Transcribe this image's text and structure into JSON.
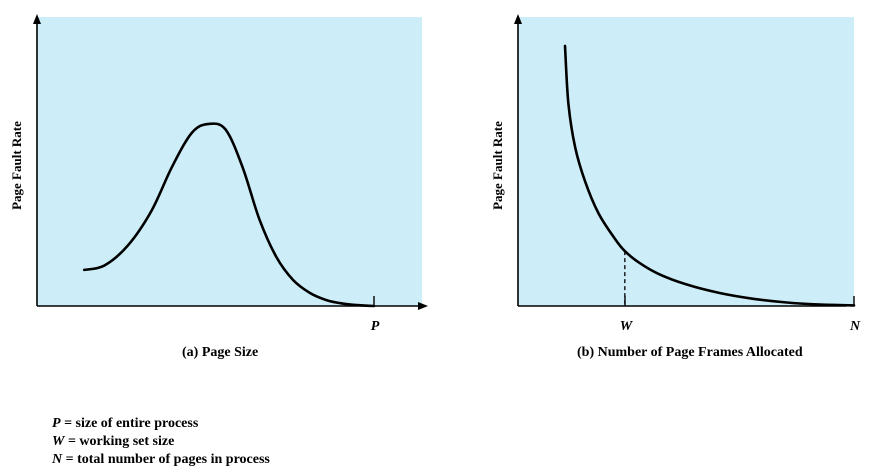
{
  "chart_data": [
    {
      "type": "line",
      "caption": "(a) Page Size",
      "ylabel": "Page Fault Rate",
      "xticks": [
        "P"
      ],
      "colors": {
        "plot_bg": "#cdeef8",
        "curve": "#000000",
        "axis": "#000000"
      },
      "series": [
        {
          "x": [
            0.14,
            0.2,
            0.27,
            0.34,
            0.4,
            0.46,
            0.51,
            0.56,
            0.61,
            0.66,
            0.71,
            0.76,
            0.81,
            0.86,
            0.91,
            0.95,
            1.0
          ],
          "y": [
            0.125,
            0.14,
            0.21,
            0.33,
            0.48,
            0.6,
            0.63,
            0.61,
            0.48,
            0.3,
            0.17,
            0.09,
            0.045,
            0.02,
            0.008,
            0.003,
            0.0
          ]
        }
      ]
    },
    {
      "type": "line",
      "caption": "(b) Number of Page Frames Allocated",
      "ylabel": "Page Fault Rate",
      "xticks": [
        "W",
        "N"
      ],
      "marker_x": 0.318,
      "colors": {
        "plot_bg": "#cdeef8",
        "curve": "#000000",
        "axis": "#000000"
      },
      "series": [
        {
          "x": [
            0.14,
            0.15,
            0.17,
            0.2,
            0.24,
            0.29,
            0.318,
            0.36,
            0.42,
            0.5,
            0.6,
            0.7,
            0.8,
            0.9,
            1.0
          ],
          "y": [
            0.9,
            0.7,
            0.55,
            0.43,
            0.32,
            0.23,
            0.19,
            0.15,
            0.11,
            0.075,
            0.045,
            0.025,
            0.012,
            0.005,
            0.002
          ]
        }
      ]
    }
  ],
  "legend": [
    {
      "symbol": "P",
      "text": " = size of entire process"
    },
    {
      "symbol": "W",
      "text": " = working set size"
    },
    {
      "symbol": "N",
      "text": " = total number of pages in process"
    }
  ]
}
